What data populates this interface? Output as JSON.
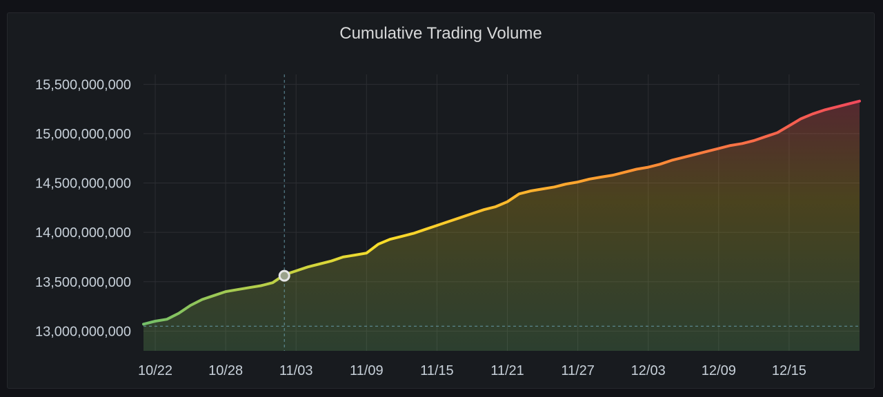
{
  "panel": {
    "title": "Cumulative Trading Volume"
  },
  "chart_data": {
    "type": "area",
    "title": "Cumulative Trading Volume",
    "xlabel": "",
    "ylabel": "",
    "x_range": [
      "10/21",
      "12/21"
    ],
    "ylim": [
      12800000000,
      15600000000
    ],
    "y_ticks": [
      13000000000,
      13500000000,
      14000000000,
      14500000000,
      15000000000,
      15500000000
    ],
    "y_tick_labels": [
      "13,000,000,000",
      "13,500,000,000",
      "14,000,000,000",
      "14,500,000,000",
      "15,000,000,000",
      "15,500,000,000"
    ],
    "x_ticks": [
      "10/22",
      "10/28",
      "11/03",
      "11/09",
      "11/15",
      "11/21",
      "11/27",
      "12/03",
      "12/09",
      "12/15"
    ],
    "grid": true,
    "line_gradient": [
      "#73bf69",
      "#fade2a",
      "#ff9830",
      "#f2495c"
    ],
    "threshold_line": 13050000000,
    "crosshair": {
      "x": "11/02",
      "y": 13560000000
    },
    "series": [
      {
        "x": [
          "10/21",
          "10/22",
          "10/23",
          "10/24",
          "10/25",
          "10/26",
          "10/27",
          "10/28",
          "10/29",
          "10/30",
          "10/31",
          "11/01",
          "11/02",
          "11/03",
          "11/04",
          "11/05",
          "11/06",
          "11/07",
          "11/08",
          "11/09",
          "11/10",
          "11/11",
          "11/12",
          "11/13",
          "11/14",
          "11/15",
          "11/16",
          "11/17",
          "11/18",
          "11/19",
          "11/20",
          "11/21",
          "11/22",
          "11/23",
          "11/24",
          "11/25",
          "11/26",
          "11/27",
          "11/28",
          "11/29",
          "11/30",
          "12/01",
          "12/02",
          "12/03",
          "12/04",
          "12/05",
          "12/06",
          "12/07",
          "12/08",
          "12/09",
          "12/10",
          "12/11",
          "12/12",
          "12/13",
          "12/14",
          "12/15",
          "12/16",
          "12/17",
          "12/18",
          "12/19",
          "12/20",
          "12/21"
        ],
        "values": [
          13070000000,
          13100000000,
          13120000000,
          13180000000,
          13260000000,
          13320000000,
          13360000000,
          13400000000,
          13420000000,
          13440000000,
          13460000000,
          13490000000,
          13570000000,
          13610000000,
          13650000000,
          13680000000,
          13710000000,
          13750000000,
          13770000000,
          13790000000,
          13880000000,
          13930000000,
          13960000000,
          13990000000,
          14030000000,
          14070000000,
          14110000000,
          14150000000,
          14190000000,
          14230000000,
          14260000000,
          14310000000,
          14390000000,
          14420000000,
          14440000000,
          14460000000,
          14490000000,
          14510000000,
          14540000000,
          14560000000,
          14580000000,
          14610000000,
          14640000000,
          14660000000,
          14690000000,
          14730000000,
          14760000000,
          14790000000,
          14820000000,
          14850000000,
          14880000000,
          14900000000,
          14930000000,
          14970000000,
          15010000000,
          15080000000,
          15150000000,
          15200000000,
          15240000000,
          15270000000,
          15300000000,
          15330000000
        ]
      }
    ]
  }
}
